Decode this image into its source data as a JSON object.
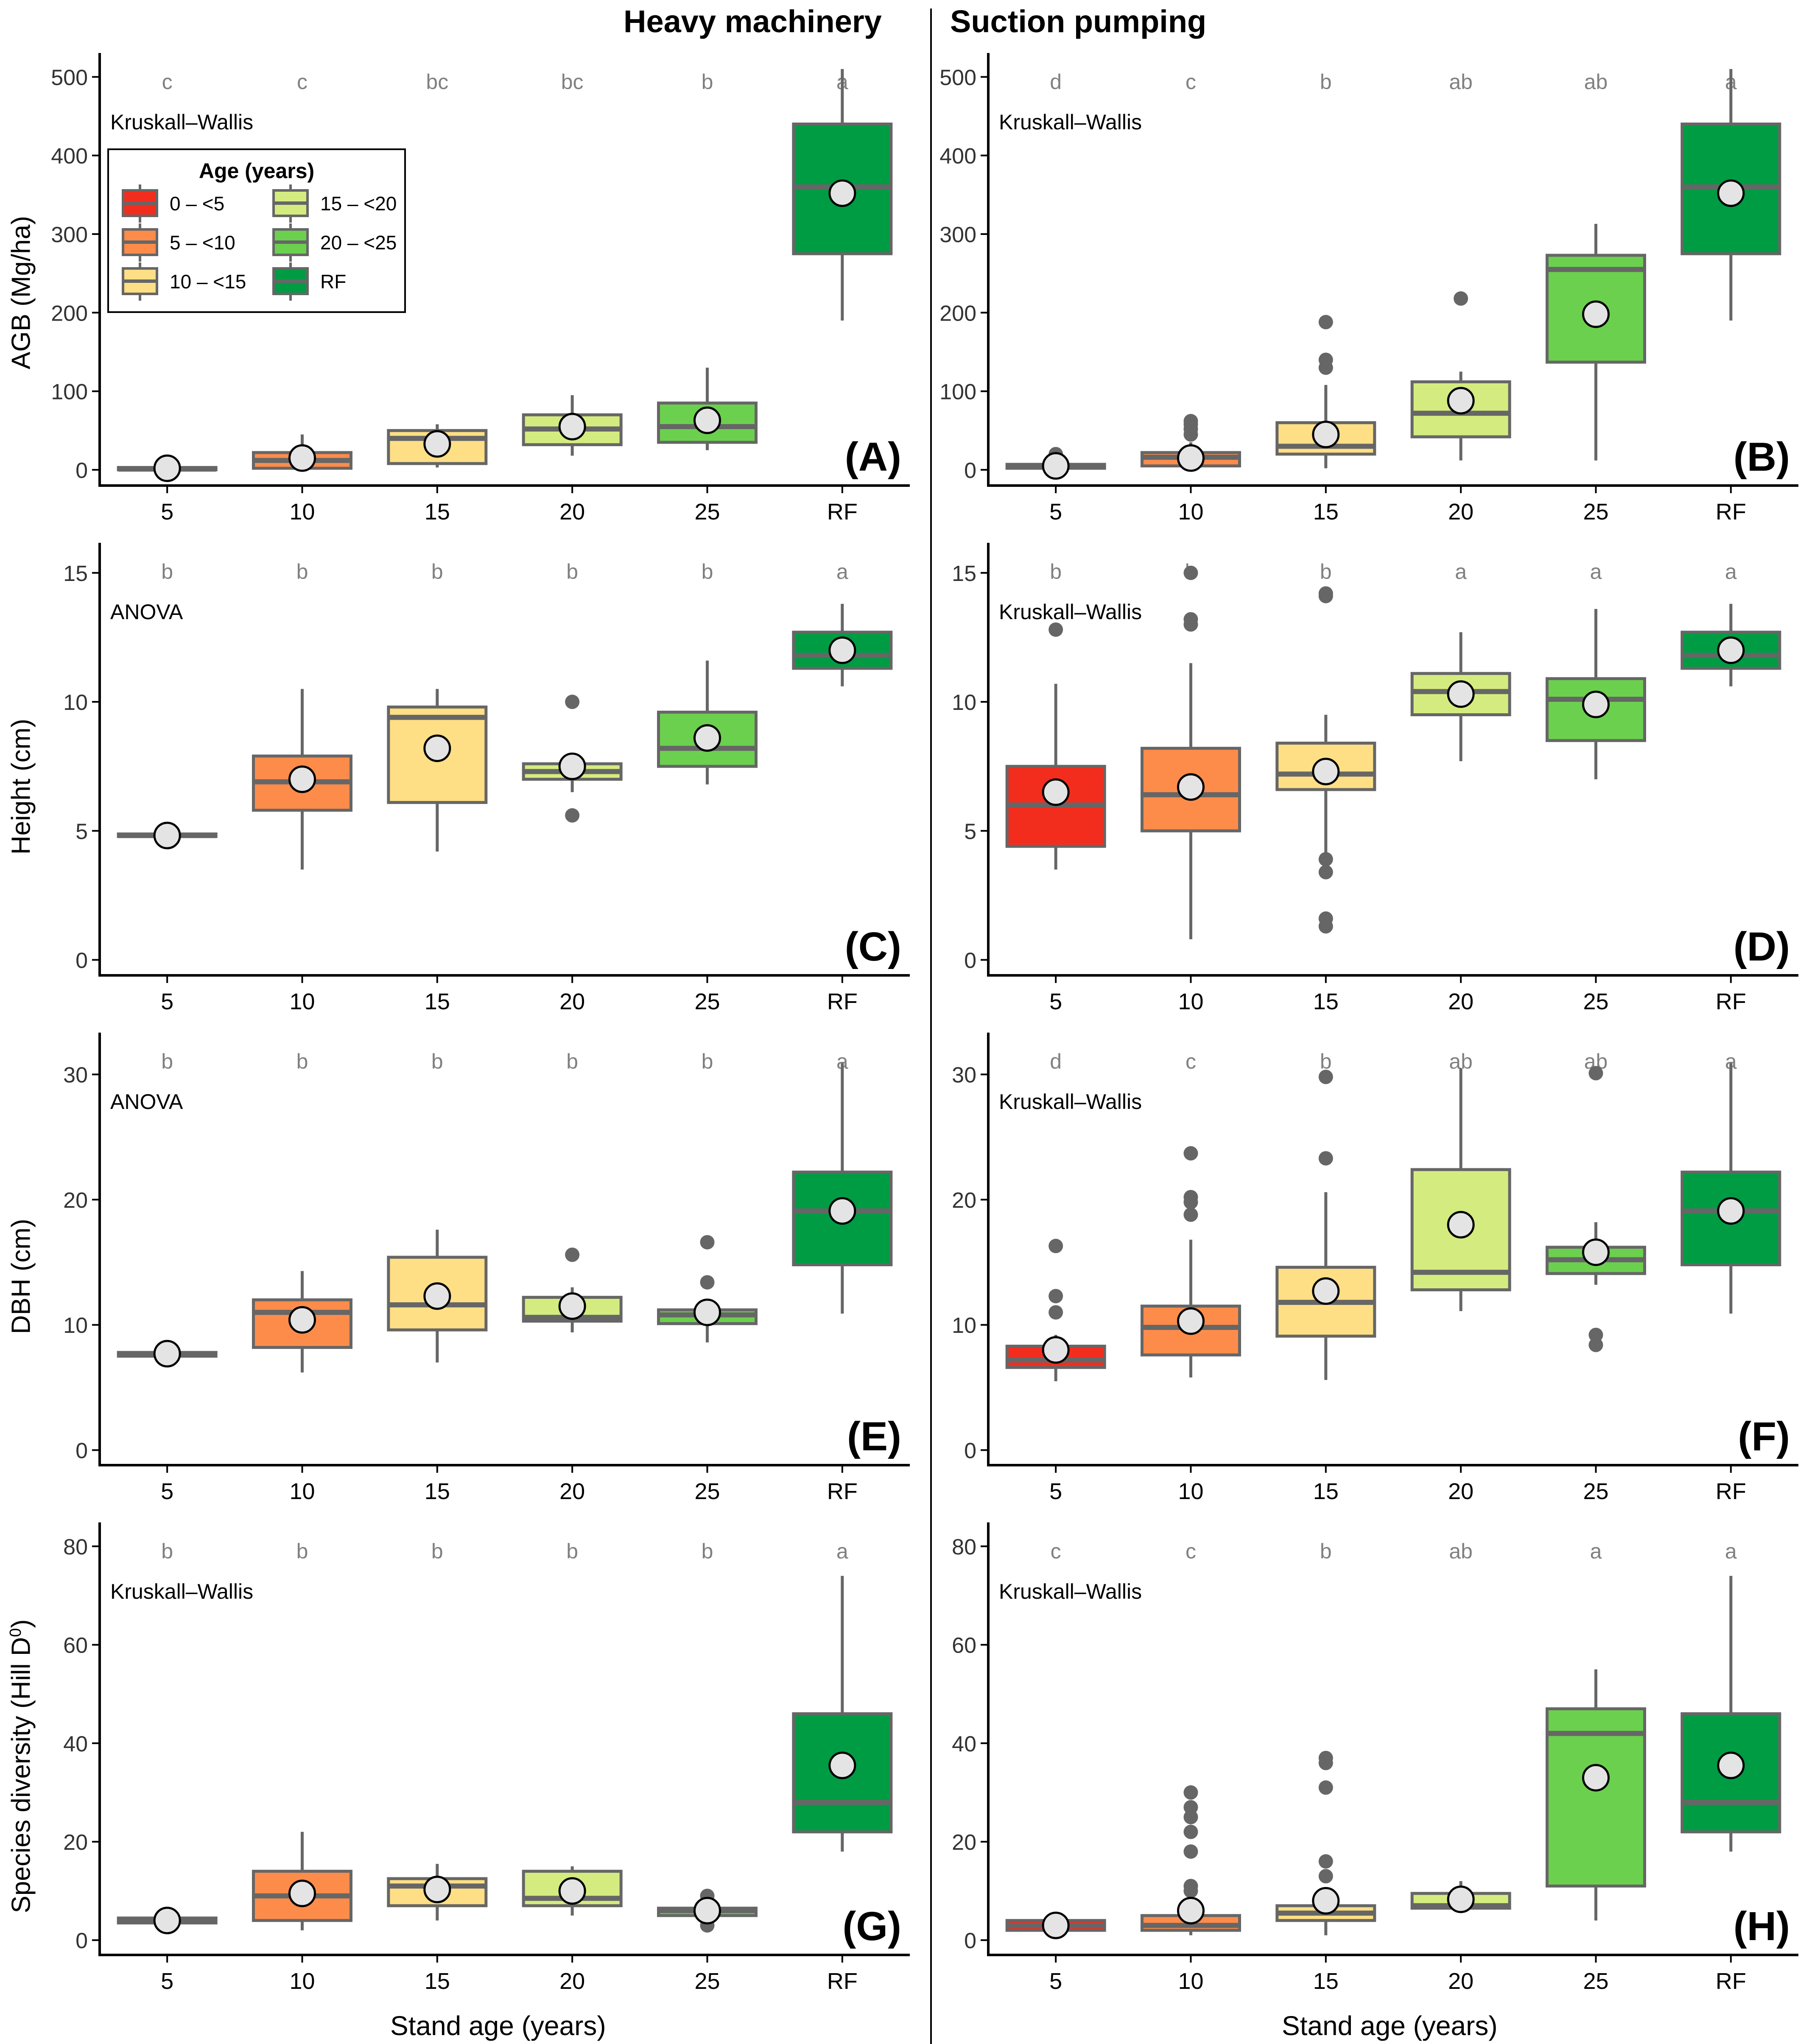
{
  "column_titles": {
    "left": "Heavy machinery",
    "right": "Suction pumping"
  },
  "x_axis_title": "Stand age (years)",
  "colors": {
    "0-<5": "#f32d1e",
    "5-<10": "#fd8c4b",
    "10-<15": "#fedf85",
    "15-<20": "#d4ec7f",
    "20-<25": "#6bd04e",
    "RF": "#009c44",
    "whisker": "#666666",
    "mean_point_fill": "#e4e4e4",
    "letter": "#808080"
  },
  "legend": {
    "title": "Age (years)",
    "entries": [
      {
        "label": "0 – <5",
        "color_key": "0-<5"
      },
      {
        "label": "5 – <10",
        "color_key": "5-<10"
      },
      {
        "label": "10 – <15",
        "color_key": "10-<15"
      },
      {
        "label": "15 – <20",
        "color_key": "15-<20"
      },
      {
        "label": "20 – <25",
        "color_key": "20-<25"
      },
      {
        "label": "RF",
        "color_key": "RF"
      }
    ]
  },
  "chart_data": [
    {
      "type": "boxplot",
      "panel": "A",
      "column": "Heavy machinery",
      "ylabel": "AGB (Mg/ha)",
      "test": "Kruskall–Wallis",
      "ylim": [
        -20,
        525
      ],
      "yticks": [
        0,
        100,
        200,
        300,
        400,
        500
      ],
      "categories": [
        "5",
        "10",
        "15",
        "20",
        "25",
        "RF"
      ],
      "letters": [
        "c",
        "c",
        "bc",
        "bc",
        "b",
        "a"
      ],
      "boxes": [
        {
          "group": "0-<5",
          "min": 0,
          "q1": 0,
          "median": 1,
          "q3": 3,
          "max": 5,
          "mean": 2,
          "outliers": []
        },
        {
          "group": "5-<10",
          "min": 0,
          "q1": 2,
          "median": 12,
          "q3": 22,
          "max": 45,
          "mean": 15,
          "outliers": []
        },
        {
          "group": "10-<15",
          "min": 3,
          "q1": 8,
          "median": 40,
          "q3": 50,
          "max": 58,
          "mean": 33,
          "outliers": []
        },
        {
          "group": "15-<20",
          "min": 18,
          "q1": 32,
          "median": 52,
          "q3": 70,
          "max": 95,
          "mean": 55,
          "outliers": []
        },
        {
          "group": "20-<25",
          "min": 25,
          "q1": 35,
          "median": 55,
          "q3": 85,
          "max": 130,
          "mean": 63,
          "outliers": []
        },
        {
          "group": "RF",
          "min": 190,
          "q1": 275,
          "median": 360,
          "q3": 440,
          "max": 510,
          "mean": 352,
          "outliers": []
        }
      ]
    },
    {
      "type": "boxplot",
      "panel": "B",
      "column": "Suction pumping",
      "ylabel": "",
      "test": "Kruskall–Wallis",
      "ylim": [
        -20,
        525
      ],
      "yticks": [
        0,
        100,
        200,
        300,
        400,
        500
      ],
      "categories": [
        "5",
        "10",
        "15",
        "20",
        "25",
        "RF"
      ],
      "letters": [
        "d",
        "c",
        "b",
        "ab",
        "ab",
        "a"
      ],
      "boxes": [
        {
          "group": "0-<5",
          "min": 0,
          "q1": 2,
          "median": 4,
          "q3": 7,
          "max": 12,
          "mean": 5,
          "outliers": [
            20
          ]
        },
        {
          "group": "5-<10",
          "min": 0,
          "q1": 5,
          "median": 16,
          "q3": 22,
          "max": 35,
          "mean": 15,
          "outliers": [
            45,
            52,
            58,
            62
          ]
        },
        {
          "group": "10-<15",
          "min": 2,
          "q1": 20,
          "median": 30,
          "q3": 60,
          "max": 108,
          "mean": 45,
          "outliers": [
            130,
            140,
            188
          ]
        },
        {
          "group": "15-<20",
          "min": 12,
          "q1": 42,
          "median": 72,
          "q3": 112,
          "max": 125,
          "mean": 88,
          "outliers": [
            218
          ]
        },
        {
          "group": "20-<25",
          "min": 12,
          "q1": 137,
          "median": 255,
          "q3": 273,
          "max": 313,
          "mean": 198,
          "outliers": []
        },
        {
          "group": "RF",
          "min": 190,
          "q1": 275,
          "median": 360,
          "q3": 440,
          "max": 510,
          "mean": 352,
          "outliers": []
        }
      ]
    },
    {
      "type": "boxplot",
      "panel": "C",
      "column": "Heavy machinery",
      "ylabel": "Height (cm)",
      "test": "ANOVA",
      "ylim": [
        -0.6,
        16
      ],
      "yticks": [
        0,
        5,
        10,
        15
      ],
      "categories": [
        "5",
        "10",
        "15",
        "20",
        "25",
        "RF"
      ],
      "letters": [
        "b",
        "b",
        "b",
        "b",
        "b",
        "a"
      ],
      "boxes": [
        {
          "group": "0-<5",
          "min": 4.75,
          "q1": 4.78,
          "median": 4.82,
          "q3": 4.88,
          "max": 4.92,
          "mean": 4.82,
          "outliers": []
        },
        {
          "group": "5-<10",
          "min": 3.5,
          "q1": 5.8,
          "median": 6.9,
          "q3": 7.9,
          "max": 10.5,
          "mean": 7.0,
          "outliers": []
        },
        {
          "group": "10-<15",
          "min": 4.2,
          "q1": 6.1,
          "median": 9.4,
          "q3": 9.8,
          "max": 10.5,
          "mean": 8.2,
          "outliers": []
        },
        {
          "group": "15-<20",
          "min": 6.5,
          "q1": 7.0,
          "median": 7.3,
          "q3": 7.6,
          "max": 7.8,
          "mean": 7.5,
          "outliers": [
            5.6,
            10.0
          ]
        },
        {
          "group": "20-<25",
          "min": 6.8,
          "q1": 7.5,
          "median": 8.2,
          "q3": 9.6,
          "max": 11.6,
          "mean": 8.6,
          "outliers": []
        },
        {
          "group": "RF",
          "min": 10.6,
          "q1": 11.3,
          "median": 11.8,
          "q3": 12.7,
          "max": 13.8,
          "mean": 12.0,
          "outliers": []
        }
      ]
    },
    {
      "type": "boxplot",
      "panel": "D",
      "column": "Suction pumping",
      "ylabel": "",
      "test": "Kruskall–Wallis",
      "ylim": [
        -0.6,
        16
      ],
      "yticks": [
        0,
        5,
        10,
        15
      ],
      "categories": [
        "5",
        "10",
        "15",
        "20",
        "25",
        "RF"
      ],
      "letters": [
        "b",
        "b",
        "b",
        "a",
        "a",
        "a"
      ],
      "boxes": [
        {
          "group": "0-<5",
          "min": 3.5,
          "q1": 4.4,
          "median": 6.0,
          "q3": 7.5,
          "max": 10.7,
          "mean": 6.5,
          "outliers": [
            12.8
          ]
        },
        {
          "group": "5-<10",
          "min": 0.8,
          "q1": 5.0,
          "median": 6.4,
          "q3": 8.2,
          "max": 11.5,
          "mean": 6.7,
          "outliers": [
            13.0,
            13.2,
            15.0
          ]
        },
        {
          "group": "10-<15",
          "min": 4.0,
          "q1": 6.6,
          "median": 7.2,
          "q3": 8.4,
          "max": 9.5,
          "mean": 7.3,
          "outliers": [
            1.3,
            1.6,
            3.4,
            3.9,
            14.1,
            14.2
          ]
        },
        {
          "group": "15-<20",
          "min": 7.7,
          "q1": 9.5,
          "median": 10.4,
          "q3": 11.1,
          "max": 12.7,
          "mean": 10.3,
          "outliers": []
        },
        {
          "group": "20-<25",
          "min": 7.0,
          "q1": 8.5,
          "median": 10.1,
          "q3": 10.9,
          "max": 13.6,
          "mean": 9.9,
          "outliers": []
        },
        {
          "group": "RF",
          "min": 10.6,
          "q1": 11.3,
          "median": 11.8,
          "q3": 12.7,
          "max": 13.8,
          "mean": 12.0,
          "outliers": []
        }
      ]
    },
    {
      "type": "boxplot",
      "panel": "E",
      "column": "Heavy machinery",
      "ylabel": "DBH (cm)",
      "test": "ANOVA",
      "ylim": [
        -1.2,
        33
      ],
      "yticks": [
        0,
        10,
        20,
        30
      ],
      "categories": [
        "5",
        "10",
        "15",
        "20",
        "25",
        "RF"
      ],
      "letters": [
        "b",
        "b",
        "b",
        "b",
        "b",
        "a"
      ],
      "boxes": [
        {
          "group": "0-<5",
          "min": 7.4,
          "q1": 7.5,
          "median": 7.6,
          "q3": 7.8,
          "max": 7.9,
          "mean": 7.7,
          "outliers": []
        },
        {
          "group": "5-<10",
          "min": 6.2,
          "q1": 8.2,
          "median": 11.0,
          "q3": 12.0,
          "max": 14.3,
          "mean": 10.4,
          "outliers": []
        },
        {
          "group": "10-<15",
          "min": 7.0,
          "q1": 9.6,
          "median": 11.6,
          "q3": 15.4,
          "max": 17.6,
          "mean": 12.3,
          "outliers": []
        },
        {
          "group": "15-<20",
          "min": 9.4,
          "q1": 10.3,
          "median": 10.6,
          "q3": 12.2,
          "max": 13.0,
          "mean": 11.5,
          "outliers": [
            15.6
          ]
        },
        {
          "group": "20-<25",
          "min": 8.6,
          "q1": 10.1,
          "median": 10.8,
          "q3": 11.2,
          "max": 12.0,
          "mean": 11.0,
          "outliers": [
            13.4,
            16.6
          ]
        },
        {
          "group": "RF",
          "min": 10.9,
          "q1": 14.8,
          "median": 19.1,
          "q3": 22.2,
          "max": 30.9,
          "mean": 19.1,
          "outliers": []
        }
      ]
    },
    {
      "type": "boxplot",
      "panel": "F",
      "column": "Suction pumping",
      "ylabel": "",
      "test": "Kruskall–Wallis",
      "ylim": [
        -1.2,
        33
      ],
      "yticks": [
        0,
        10,
        20,
        30
      ],
      "categories": [
        "5",
        "10",
        "15",
        "20",
        "25",
        "RF"
      ],
      "letters": [
        "d",
        "c",
        "b",
        "ab",
        "ab",
        "a"
      ],
      "boxes": [
        {
          "group": "0-<5",
          "min": 5.5,
          "q1": 6.6,
          "median": 7.2,
          "q3": 8.3,
          "max": 9.2,
          "mean": 8.0,
          "outliers": [
            11.0,
            12.3,
            16.3
          ]
        },
        {
          "group": "5-<10",
          "min": 5.8,
          "q1": 7.6,
          "median": 9.8,
          "q3": 11.5,
          "max": 16.8,
          "mean": 10.3,
          "outliers": [
            18.8,
            19.8,
            20.2,
            23.7
          ]
        },
        {
          "group": "10-<15",
          "min": 5.6,
          "q1": 9.1,
          "median": 11.8,
          "q3": 14.6,
          "max": 20.6,
          "mean": 12.7,
          "outliers": [
            23.3,
            29.8
          ]
        },
        {
          "group": "15-<20",
          "min": 11.1,
          "q1": 12.8,
          "median": 14.2,
          "q3": 22.4,
          "max": 30.5,
          "mean": 18.0,
          "outliers": []
        },
        {
          "group": "20-<25",
          "min": 13.2,
          "q1": 14.1,
          "median": 15.2,
          "q3": 16.2,
          "max": 18.2,
          "mean": 15.8,
          "outliers": [
            8.4,
            9.2,
            30.1
          ]
        },
        {
          "group": "RF",
          "min": 10.9,
          "q1": 14.8,
          "median": 19.1,
          "q3": 22.2,
          "max": 30.9,
          "mean": 19.1,
          "outliers": []
        }
      ]
    },
    {
      "type": "boxplot",
      "panel": "G",
      "column": "Heavy machinery",
      "ylabel": "Species diversity (Hill D",
      "ylabel_superscript": "0",
      "ylabel_suffix": ")",
      "test": "Kruskall–Wallis",
      "ylim": [
        -3,
        84
      ],
      "yticks": [
        0,
        20,
        40,
        60,
        80
      ],
      "categories": [
        "5",
        "10",
        "15",
        "20",
        "25",
        "RF"
      ],
      "letters": [
        "b",
        "b",
        "b",
        "b",
        "b",
        "a"
      ],
      "boxes": [
        {
          "group": "0-<5",
          "min": 3,
          "q1": 3.5,
          "median": 4,
          "q3": 4.5,
          "max": 5,
          "mean": 4,
          "outliers": []
        },
        {
          "group": "5-<10",
          "min": 2,
          "q1": 4,
          "median": 9,
          "q3": 14,
          "max": 22,
          "mean": 9.5,
          "outliers": []
        },
        {
          "group": "10-<15",
          "min": 4,
          "q1": 7,
          "median": 11,
          "q3": 12.5,
          "max": 15.5,
          "mean": 10.3,
          "outliers": []
        },
        {
          "group": "15-<20",
          "min": 5,
          "q1": 7,
          "median": 8.5,
          "q3": 14,
          "max": 15,
          "mean": 10,
          "outliers": []
        },
        {
          "group": "20-<25",
          "min": 4,
          "q1": 5,
          "median": 6,
          "q3": 6.5,
          "max": 7,
          "mean": 6,
          "outliers": [
            3,
            9
          ]
        },
        {
          "group": "RF",
          "min": 18,
          "q1": 22,
          "median": 28,
          "q3": 46,
          "max": 74,
          "mean": 35.5,
          "outliers": []
        }
      ]
    },
    {
      "type": "boxplot",
      "panel": "H",
      "column": "Suction pumping",
      "ylabel": "",
      "test": "Kruskall–Wallis",
      "ylim": [
        -3,
        84
      ],
      "yticks": [
        0,
        20,
        40,
        60,
        80
      ],
      "categories": [
        "5",
        "10",
        "15",
        "20",
        "25",
        "RF"
      ],
      "letters": [
        "c",
        "c",
        "b",
        "ab",
        "a",
        "a"
      ],
      "boxes": [
        {
          "group": "0-<5",
          "min": 2,
          "q1": 2,
          "median": 3,
          "q3": 4,
          "max": 4.5,
          "mean": 3,
          "outliers": []
        },
        {
          "group": "5-<10",
          "min": 1,
          "q1": 2,
          "median": 3,
          "q3": 5,
          "max": 8,
          "mean": 6,
          "outliers": [
            10,
            11,
            18,
            22,
            25,
            27,
            30
          ]
        },
        {
          "group": "10-<15",
          "min": 1,
          "q1": 4,
          "median": 5.5,
          "q3": 7,
          "max": 10,
          "mean": 8,
          "outliers": [
            13,
            16,
            31,
            36,
            37
          ]
        },
        {
          "group": "15-<20",
          "min": 6,
          "q1": 6.5,
          "median": 7,
          "q3": 9.5,
          "max": 12,
          "mean": 8.3,
          "outliers": []
        },
        {
          "group": "20-<25",
          "min": 4,
          "q1": 11,
          "median": 42,
          "q3": 47,
          "max": 55,
          "mean": 33,
          "outliers": []
        },
        {
          "group": "RF",
          "min": 18,
          "q1": 22,
          "median": 28,
          "q3": 46,
          "max": 74,
          "mean": 35.5,
          "outliers": []
        }
      ]
    }
  ]
}
